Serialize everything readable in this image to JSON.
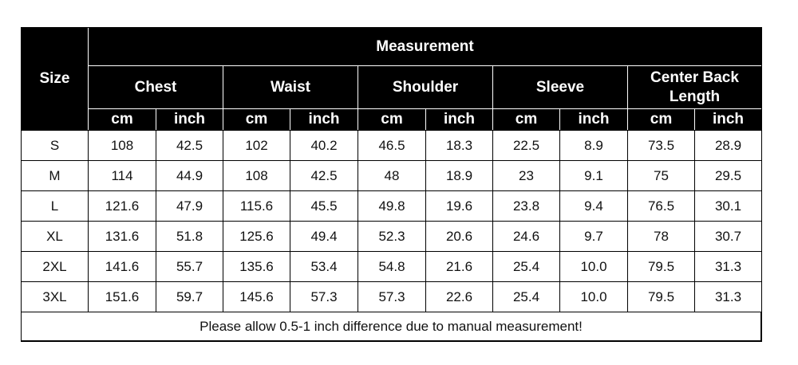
{
  "table": {
    "size_header": "Size",
    "group_header": "Measurement",
    "groups": [
      "Chest",
      "Waist",
      "Shoulder",
      "Sleeve",
      "Center Back Length"
    ],
    "units": [
      "cm",
      "inch",
      "cm",
      "inch",
      "cm",
      "inch",
      "cm",
      "inch",
      "cm",
      "inch"
    ],
    "rows": [
      [
        "S",
        "108",
        "42.5",
        "102",
        "40.2",
        "46.5",
        "18.3",
        "22.5",
        "8.9",
        "73.5",
        "28.9"
      ],
      [
        "M",
        "114",
        "44.9",
        "108",
        "42.5",
        "48",
        "18.9",
        "23",
        "9.1",
        "75",
        "29.5"
      ],
      [
        "L",
        "121.6",
        "47.9",
        "115.6",
        "45.5",
        "49.8",
        "19.6",
        "23.8",
        "9.4",
        "76.5",
        "30.1"
      ],
      [
        "XL",
        "131.6",
        "51.8",
        "125.6",
        "49.4",
        "52.3",
        "20.6",
        "24.6",
        "9.7",
        "78",
        "30.7"
      ],
      [
        "2XL",
        "141.6",
        "55.7",
        "135.6",
        "53.4",
        "54.8",
        "21.6",
        "25.4",
        "10.0",
        "79.5",
        "31.3"
      ],
      [
        "3XL",
        "151.6",
        "59.7",
        "145.6",
        "57.3",
        "57.3",
        "22.6",
        "25.4",
        "10.0",
        "79.5",
        "31.3"
      ]
    ],
    "note": "Please allow 0.5-1 inch difference due to manual measurement!"
  }
}
